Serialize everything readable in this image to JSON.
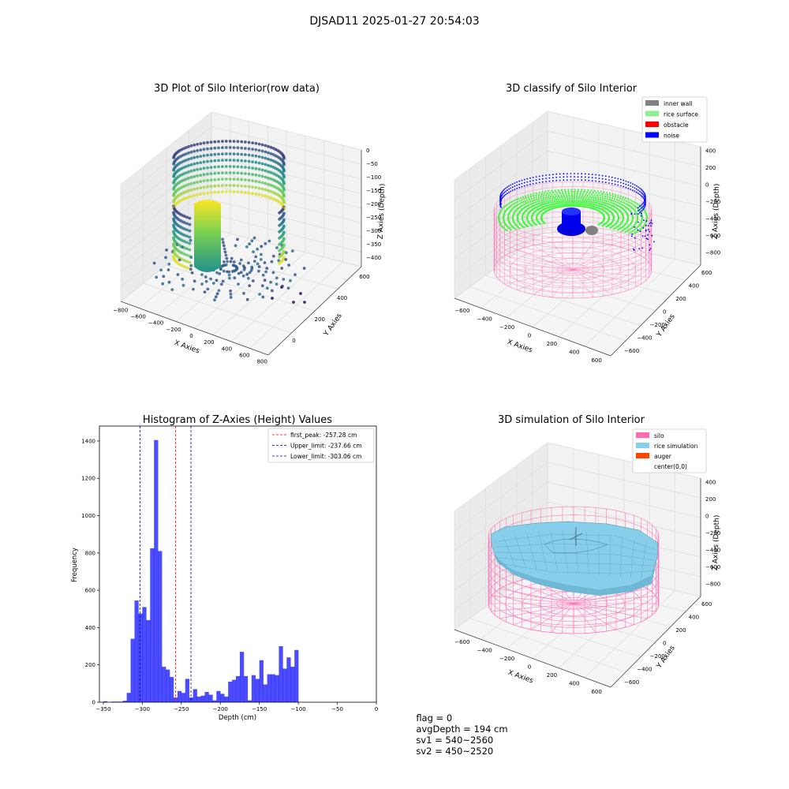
{
  "suptitle": "DJSAD11 2025-01-27 20:54:03",
  "status": {
    "flag": "flag = 0",
    "avg_depth": "avgDepth = 194 cm",
    "sv1": "sv1 = 540~2560",
    "sv2": "sv2 = 450~2520"
  },
  "chart_data": [
    {
      "type": "scatter",
      "title": "3D Plot of Silo Interior(row data)",
      "xlabel": "X Axies",
      "ylabel": "Y Axies",
      "zlabel": "Z Axies (Depth)",
      "x_ticks": [
        "−800",
        "−600",
        "−400",
        "−200",
        "0",
        "200",
        "400",
        "600",
        "800"
      ],
      "y_ticks": [
        "0",
        "200",
        "400",
        "600"
      ],
      "z_ticks": [
        "0",
        "−50",
        "−100",
        "−150",
        "−200",
        "−250",
        "−300",
        "−350",
        "−400"
      ],
      "colormap": [
        "#440154",
        "#3b528b",
        "#21918c",
        "#5ec962",
        "#fde725"
      ]
    },
    {
      "type": "scatter",
      "title": "3D classify of Silo Interior",
      "xlabel": "X Axies",
      "ylabel": "Y Axies",
      "zlabel": "Z Axies (Depth)",
      "x_ticks": [
        "−600",
        "−400",
        "−200",
        "0",
        "200",
        "400",
        "600"
      ],
      "y_ticks": [
        "−600",
        "−400",
        "−200",
        "0",
        "200",
        "400",
        "600"
      ],
      "z_ticks": [
        "400",
        "200",
        "0",
        "−200",
        "−400",
        "−600",
        "−800"
      ],
      "legend": [
        {
          "name": "inner wall",
          "color": "#808080"
        },
        {
          "name": "rice surface",
          "color": "#90ee90"
        },
        {
          "name": "obstacle",
          "color": "#ff0000"
        },
        {
          "name": "noise",
          "color": "#0000ff"
        }
      ],
      "legend_position": "top-right"
    },
    {
      "type": "bar",
      "title": "Histogram of Z-Axies (Height) Values",
      "xlabel": "Depth (cm)",
      "ylabel": "Frequency",
      "xlim": [
        -355,
        0
      ],
      "ylim": [
        0,
        1480
      ],
      "x_ticks": [
        -350,
        -300,
        -250,
        -200,
        -150,
        -100,
        -50,
        0
      ],
      "y_ticks": [
        0,
        200,
        400,
        600,
        800,
        1000,
        1200,
        1400
      ],
      "bin_width": 5,
      "bin_start": -355,
      "values": [
        0,
        5,
        0,
        3,
        3,
        3,
        8,
        50,
        340,
        545,
        475,
        510,
        440,
        825,
        1405,
        810,
        190,
        175,
        135,
        25,
        60,
        50,
        125,
        25,
        70,
        30,
        35,
        55,
        40,
        10,
        60,
        45,
        30,
        110,
        120,
        140,
        270,
        140,
        10,
        145,
        125,
        225,
        95,
        150,
        150,
        145,
        300,
        180,
        240,
        190,
        280
      ],
      "bar_color": "#0000ff",
      "lines": [
        {
          "label": "first_peak: -257.28 cm",
          "x": -257.28,
          "color": "#ff0000"
        },
        {
          "label": "Upper_limit: -237.66 cm",
          "x": -237.66,
          "color": "#00008b"
        },
        {
          "label": "Lower_limit: -303.06 cm",
          "x": -303.06,
          "color": "#00008b"
        }
      ],
      "legend_position": "top-right"
    },
    {
      "type": "area",
      "title": "3D simulation of Silo Interior",
      "xlabel": "X Axies",
      "ylabel": "Y Axies",
      "zlabel": "Z Axies (Depth)",
      "x_ticks": [
        "−600",
        "−400",
        "−200",
        "0",
        "200",
        "400",
        "600"
      ],
      "y_ticks": [
        "−600",
        "−400",
        "−200",
        "0",
        "200",
        "400",
        "600"
      ],
      "z_ticks": [
        "400",
        "200",
        "0",
        "−200",
        "−400",
        "−600",
        "−800"
      ],
      "legend": [
        {
          "name": "silo",
          "color": "#ff69b4"
        },
        {
          "name": "rice simulation",
          "color": "#87ceeb"
        },
        {
          "name": "auger",
          "color": "#ff4500"
        },
        {
          "name": "center(0,0)",
          "color": ""
        }
      ],
      "legend_position": "top-right"
    }
  ]
}
